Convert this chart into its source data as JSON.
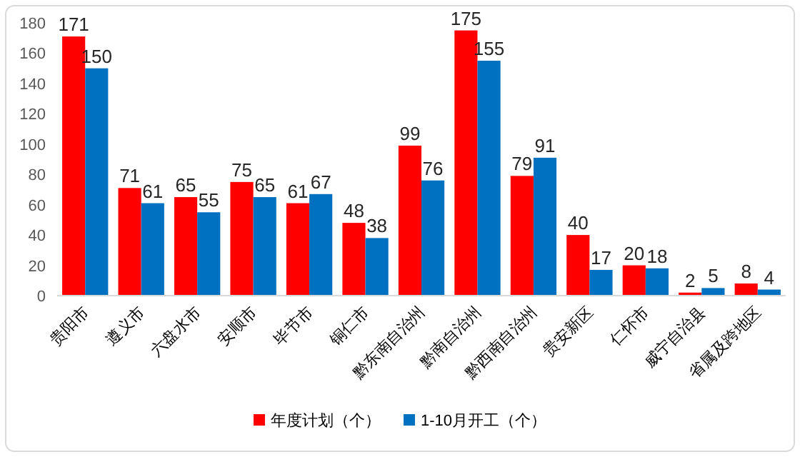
{
  "chart_data": {
    "type": "bar",
    "categories": [
      "贵阳市",
      "遵义市",
      "六盘水市",
      "安顺市",
      "毕节市",
      "铜仁市",
      "黔东南自治州",
      "黔南自治州",
      "黔西南自治州",
      "贵安新区",
      "仁怀市",
      "威宁自治县",
      "省属及跨地区"
    ],
    "series": [
      {
        "name": "年度计划（个）",
        "color": "#ff0000",
        "values": [
          171,
          71,
          65,
          75,
          61,
          48,
          99,
          175,
          79,
          40,
          20,
          2,
          8
        ]
      },
      {
        "name": "1-10月开工（个）",
        "color": "#0070c0",
        "values": [
          150,
          61,
          55,
          65,
          67,
          38,
          76,
          155,
          91,
          17,
          18,
          5,
          4
        ]
      }
    ],
    "ylim": [
      0,
      180
    ],
    "yticks": [
      0,
      20,
      40,
      60,
      80,
      100,
      120,
      140,
      160,
      180
    ],
    "data_labels": true,
    "legend": "bottom",
    "grid": false
  }
}
